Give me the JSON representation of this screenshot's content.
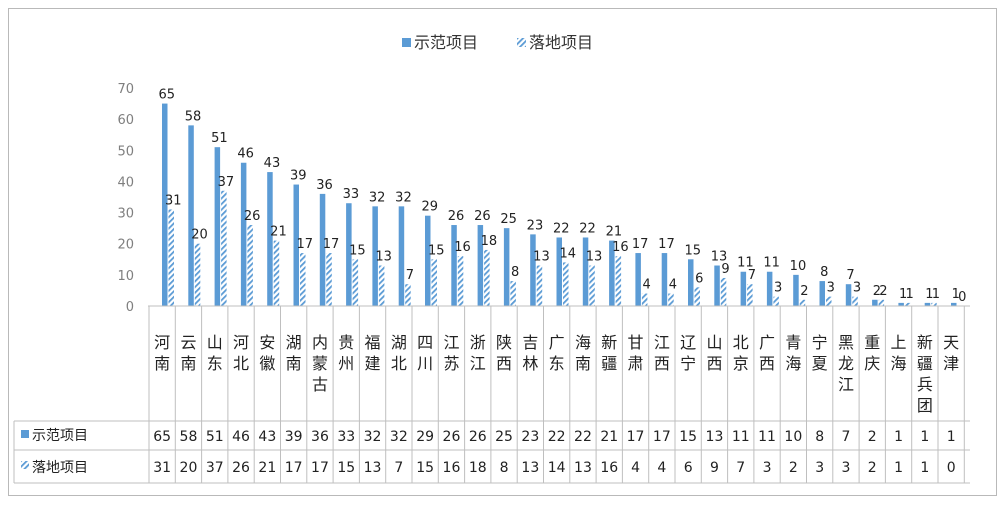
{
  "chart_data": {
    "type": "bar",
    "categories": [
      "河南",
      "云南",
      "山东",
      "河北",
      "安徽",
      "湖南",
      "内蒙古",
      "贵州",
      "福建",
      "湖北",
      "四川",
      "江苏",
      "浙江",
      "陕西",
      "吉林",
      "广东",
      "海南",
      "新疆",
      "甘肃",
      "江西",
      "辽宁",
      "山西",
      "北京",
      "广西",
      "青海",
      "宁夏",
      "黑龙江",
      "重庆",
      "上海",
      "新疆兵团",
      "天津"
    ],
    "series": [
      {
        "name": "示范项目",
        "values": [
          65,
          58,
          51,
          46,
          43,
          39,
          36,
          33,
          32,
          32,
          29,
          26,
          26,
          25,
          23,
          22,
          22,
          21,
          17,
          17,
          15,
          13,
          11,
          11,
          10,
          8,
          7,
          2,
          1,
          1,
          1
        ]
      },
      {
        "name": "落地项目",
        "values": [
          31,
          20,
          37,
          26,
          21,
          17,
          17,
          15,
          13,
          7,
          15,
          16,
          18,
          8,
          13,
          14,
          13,
          16,
          4,
          4,
          6,
          9,
          7,
          3,
          2,
          3,
          3,
          2,
          1,
          1,
          0
        ]
      }
    ],
    "ylim": [
      0,
      70
    ],
    "yticks": [
      0,
      10,
      20,
      30,
      40,
      50,
      60,
      70
    ],
    "legend_position": "top",
    "data_table": true,
    "colors": {
      "series0": "#5b9bd5",
      "series1": "#5b9bd5"
    }
  }
}
